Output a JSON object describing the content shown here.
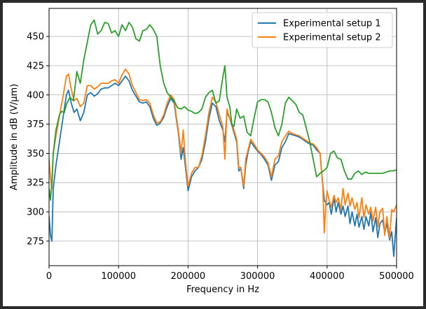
{
  "chart_data": {
    "type": "line",
    "title": "",
    "xlabel": "Frequency in Hz",
    "ylabel": "Amplitude in dB (V/μm)",
    "xlim": [
      0,
      500000
    ],
    "ylim": [
      254,
      474
    ],
    "xticks": [
      0,
      100000,
      200000,
      300000,
      400000,
      500000
    ],
    "xtick_labels": [
      "0",
      "100000",
      "200000",
      "300000",
      "400000",
      "500000"
    ],
    "yticks": [
      275,
      300,
      325,
      350,
      375,
      400,
      425,
      450
    ],
    "ytick_labels": [
      "275",
      "300",
      "325",
      "350",
      "375",
      "400",
      "425",
      "450"
    ],
    "grid": true,
    "legend_position": "top-right",
    "series": [
      {
        "name": "Experimental setup 1",
        "color": "#1f77b4",
        "x": [
          0,
          2000,
          4000,
          6000,
          10000,
          15000,
          20000,
          25000,
          28000,
          32000,
          36000,
          40000,
          45000,
          50000,
          55000,
          60000,
          65000,
          70000,
          75000,
          80000,
          85000,
          90000,
          95000,
          100000,
          105000,
          110000,
          115000,
          120000,
          125000,
          130000,
          135000,
          140000,
          145000,
          150000,
          155000,
          160000,
          165000,
          170000,
          175000,
          180000,
          183000,
          186000,
          190000,
          193000,
          196000,
          200000,
          205000,
          210000,
          215000,
          220000,
          225000,
          230000,
          235000,
          240000,
          245000,
          250000,
          253000,
          256000,
          260000,
          265000,
          270000,
          273000,
          276000,
          280000,
          283000,
          286000,
          290000,
          295000,
          300000,
          305000,
          310000,
          315000,
          320000,
          325000,
          330000,
          335000,
          340000,
          345000,
          350000,
          355000,
          360000,
          365000,
          370000,
          375000,
          380000,
          385000,
          390000,
          392000,
          394000,
          396000,
          398000,
          400000,
          403000,
          406000,
          410000,
          413000,
          416000,
          420000,
          423000,
          426000,
          430000,
          433000,
          436000,
          440000,
          443000,
          446000,
          450000,
          453000,
          456000,
          460000,
          463000,
          466000,
          470000,
          473000,
          476000,
          480000,
          483000,
          486000,
          490000,
          493000,
          496000,
          500000
        ],
        "y": [
          296,
          280,
          275,
          320,
          340,
          360,
          380,
          400,
          404,
          393,
          385,
          388,
          378,
          385,
          400,
          402,
          399,
          401,
          405,
          406,
          406,
          408,
          410,
          408,
          412,
          416,
          412,
          404,
          399,
          394,
          393,
          394,
          390,
          380,
          374,
          376,
          381,
          390,
          397,
          393,
          380,
          368,
          345,
          355,
          340,
          318,
          330,
          335,
          338,
          345,
          360,
          380,
          393,
          390,
          378,
          370,
          360,
          385,
          380,
          370,
          360,
          335,
          337,
          320,
          340,
          350,
          360,
          356,
          352,
          349,
          345,
          340,
          327,
          340,
          343,
          355,
          360,
          367,
          366,
          365,
          364,
          362,
          360,
          358,
          357,
          353,
          350,
          335,
          323,
          310,
          308,
          306,
          308,
          298,
          312,
          300,
          308,
          298,
          305,
          296,
          305,
          290,
          300,
          288,
          298,
          287,
          296,
          285,
          296,
          288,
          300,
          283,
          295,
          278,
          290,
          293,
          282,
          290,
          276,
          283,
          262,
          295
        ]
      },
      {
        "name": "Experimental setup 2",
        "color": "#ff7f0e",
        "x": [
          0,
          2000,
          4000,
          6000,
          10000,
          15000,
          20000,
          25000,
          28000,
          32000,
          36000,
          40000,
          45000,
          50000,
          55000,
          60000,
          65000,
          70000,
          75000,
          80000,
          85000,
          90000,
          95000,
          100000,
          105000,
          110000,
          115000,
          120000,
          125000,
          130000,
          135000,
          140000,
          145000,
          150000,
          155000,
          160000,
          165000,
          170000,
          175000,
          180000,
          183000,
          186000,
          190000,
          193000,
          196000,
          200000,
          205000,
          210000,
          215000,
          220000,
          225000,
          230000,
          235000,
          240000,
          245000,
          250000,
          253000,
          256000,
          260000,
          265000,
          270000,
          273000,
          276000,
          280000,
          283000,
          286000,
          290000,
          295000,
          300000,
          305000,
          310000,
          315000,
          320000,
          325000,
          330000,
          335000,
          340000,
          345000,
          350000,
          355000,
          360000,
          365000,
          370000,
          375000,
          380000,
          385000,
          390000,
          392000,
          394000,
          396000,
          398000,
          400000,
          403000,
          406000,
          410000,
          413000,
          416000,
          420000,
          423000,
          426000,
          430000,
          433000,
          436000,
          440000,
          443000,
          446000,
          450000,
          453000,
          456000,
          460000,
          463000,
          466000,
          470000,
          473000,
          476000,
          480000,
          483000,
          486000,
          490000,
          493000,
          496000,
          500000
        ],
        "y": [
          345,
          330,
          320,
          350,
          365,
          382,
          398,
          416,
          418,
          405,
          395,
          397,
          390,
          393,
          408,
          408,
          405,
          407,
          410,
          410,
          410,
          412,
          413,
          410,
          417,
          422,
          418,
          408,
          402,
          396,
          395,
          396,
          393,
          383,
          376,
          377,
          383,
          393,
          400,
          396,
          382,
          370,
          350,
          370,
          345,
          322,
          333,
          338,
          338,
          348,
          365,
          385,
          398,
          394,
          383,
          373,
          345,
          388,
          380,
          372,
          362,
          338,
          338,
          322,
          345,
          352,
          362,
          358,
          353,
          350,
          347,
          342,
          330,
          345,
          348,
          360,
          365,
          369,
          367,
          366,
          365,
          363,
          361,
          359,
          358,
          355,
          350,
          335,
          321,
          282,
          305,
          318,
          310,
          304,
          314,
          308,
          312,
          302,
          320,
          306,
          316,
          305,
          312,
          302,
          308,
          295,
          312,
          295,
          306,
          298,
          304,
          292,
          304,
          287,
          300,
          303,
          280,
          296,
          278,
          302,
          300,
          306
        ]
      },
      {
        "name": "",
        "color": "#2ca02c",
        "x": [
          0,
          2000,
          4000,
          6000,
          10000,
          15000,
          18000,
          22000,
          25000,
          30000,
          35000,
          40000,
          45000,
          50000,
          55000,
          60000,
          65000,
          70000,
          75000,
          80000,
          85000,
          90000,
          95000,
          100000,
          105000,
          110000,
          115000,
          120000,
          125000,
          130000,
          135000,
          140000,
          145000,
          150000,
          155000,
          160000,
          165000,
          170000,
          175000,
          180000,
          185000,
          190000,
          195000,
          200000,
          205000,
          210000,
          215000,
          220000,
          225000,
          230000,
          235000,
          240000,
          245000,
          250000,
          253000,
          256000,
          260000,
          263000,
          266000,
          270000,
          275000,
          280000,
          285000,
          290000,
          295000,
          300000,
          305000,
          310000,
          315000,
          320000,
          325000,
          330000,
          335000,
          340000,
          345000,
          350000,
          355000,
          360000,
          365000,
          370000,
          375000,
          380000,
          385000,
          390000,
          395000,
          400000,
          405000,
          410000,
          415000,
          420000,
          425000,
          430000,
          435000,
          440000,
          445000,
          450000,
          455000,
          460000,
          465000,
          470000,
          475000,
          480000,
          485000,
          490000,
          495000,
          500000
        ],
        "y": [
          320,
          310,
          325,
          350,
          370,
          383,
          386,
          385,
          392,
          398,
          395,
          420,
          410,
          430,
          445,
          460,
          464,
          452,
          455,
          462,
          461,
          453,
          455,
          450,
          460,
          455,
          462,
          458,
          448,
          446,
          455,
          456,
          460,
          456,
          450,
          425,
          410,
          402,
          398,
          395,
          389,
          388,
          390,
          387,
          386,
          384,
          385,
          388,
          398,
          402,
          404,
          393,
          395,
          415,
          425,
          398,
          390,
          375,
          373,
          388,
          380,
          382,
          368,
          365,
          380,
          394,
          396,
          396,
          394,
          385,
          372,
          365,
          375,
          393,
          398,
          395,
          392,
          385,
          383,
          372,
          360,
          345,
          330,
          333,
          335,
          338,
          350,
          352,
          346,
          345,
          335,
          328,
          328,
          333,
          335,
          332,
          334,
          333,
          333,
          333,
          333,
          333,
          334,
          335,
          335,
          336
        ]
      }
    ]
  }
}
